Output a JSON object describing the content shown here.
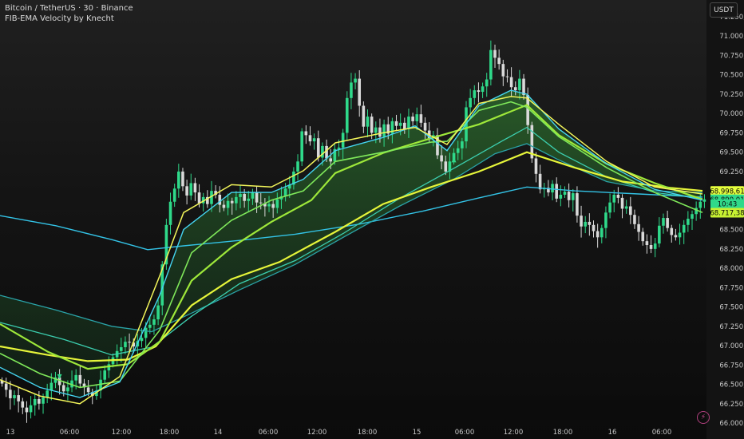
{
  "chart_data": {
    "type": "candlestick",
    "title": "Bitcoin / TetherUS · 30 · Binance",
    "indicator": "FIB-EMA Velocity by Knecht",
    "currency": "USDT",
    "ylim": [
      66000,
      71250
    ],
    "y_ticks": [
      {
        "value": 71250,
        "label": "71.250,00"
      },
      {
        "value": 71000,
        "label": "71.000,00"
      },
      {
        "value": 70750,
        "label": "70.750,00"
      },
      {
        "value": 70500,
        "label": "70.500,00"
      },
      {
        "value": 70250,
        "label": "70.250,00"
      },
      {
        "value": 70000,
        "label": "70.000,00"
      },
      {
        "value": 69750,
        "label": "69.750,00"
      },
      {
        "value": 69500,
        "label": "69.500,00"
      },
      {
        "value": 69250,
        "label": "69.250,00"
      },
      {
        "value": 69000,
        "label": "69.000,00"
      },
      {
        "value": 68750,
        "label": "68.750,00"
      },
      {
        "value": 68500,
        "label": "68.500,00"
      },
      {
        "value": 68250,
        "label": "68.250,00"
      },
      {
        "value": 68000,
        "label": "68.000,00"
      },
      {
        "value": 67750,
        "label": "67.750,00"
      },
      {
        "value": 67500,
        "label": "67.500,00"
      },
      {
        "value": 67250,
        "label": "67.250,00"
      },
      {
        "value": 67000,
        "label": "67.000,00"
      },
      {
        "value": 66750,
        "label": "66.750,00"
      },
      {
        "value": 66500,
        "label": "66.500,00"
      },
      {
        "value": 66250,
        "label": "66.250,00"
      },
      {
        "value": 66000,
        "label": "66.000,00"
      }
    ],
    "x_ticks": [
      "13",
      "06:00",
      "12:00",
      "18:00",
      "14",
      "06:00",
      "12:00",
      "18:00",
      "15",
      "06:00",
      "12:00",
      "18:00",
      "16",
      "06:00"
    ],
    "price_labels": [
      {
        "value": 68998.61,
        "label": "68.998,61",
        "color": "#e6ff3c"
      },
      {
        "value": 68890.01,
        "label": "68.890,01",
        "color": "#2fd98a"
      },
      {
        "value": 68830,
        "label": "10:43",
        "color": "#2fd98a"
      },
      {
        "value": 68717.38,
        "label": "68.717,38",
        "color": "#c6f032"
      }
    ],
    "series_colors": {
      "ema_cyan": "#33c3e6",
      "ema_yellow": "#e6f53a",
      "ema_lime": "#9ee83a",
      "ema_green": "#2fd98a",
      "ema_teal": "#2aa3a8",
      "up_candle": "#2fd98a",
      "down_candle": "#d9d9d9"
    },
    "candles_close": [
      66510,
      66430,
      66320,
      66360,
      66280,
      66200,
      66140,
      66230,
      66310,
      66250,
      66330,
      66420,
      66520,
      66590,
      66490,
      66410,
      66460,
      66550,
      66620,
      66510,
      66460,
      66400,
      66350,
      66420,
      66560,
      66680,
      66760,
      66850,
      66930,
      66980,
      67050,
      67040,
      66990,
      67060,
      67100,
      67230,
      67270,
      67340,
      67520,
      68050,
      68560,
      68860,
      69030,
      69250,
      69060,
      68940,
      69100,
      68980,
      68840,
      68920,
      68830,
      69000,
      68950,
      68820,
      68780,
      68870,
      68840,
      68920,
      68960,
      68870,
      68900,
      68980,
      68850,
      68840,
      68800,
      68830,
      68780,
      68890,
      68930,
      69030,
      69080,
      69250,
      69380,
      69770,
      69720,
      69640,
      69680,
      69430,
      69580,
      69420,
      69380,
      69540,
      69560,
      69750,
      70200,
      70400,
      70450,
      70100,
      69830,
      69960,
      69750,
      69820,
      69700,
      69860,
      69740,
      69900,
      69840,
      69880,
      69800,
      69960,
      69900,
      69990,
      69880,
      69780,
      69680,
      69720,
      69460,
      69380,
      69250,
      69380,
      69490,
      69550,
      69640,
      70080,
      70200,
      70300,
      70280,
      70350,
      70440,
      70820,
      70720,
      70640,
      70480,
      70470,
      70340,
      70300,
      70450,
      70240,
      69850,
      69420,
      69220,
      69020,
      69040,
      68980,
      69090,
      68900,
      68950,
      68990,
      68880,
      68970,
      68680,
      68540,
      68600,
      68560,
      68480,
      68400,
      68520,
      68720,
      68850,
      68950,
      68910,
      68770,
      68800,
      68690,
      68570,
      68470,
      68350,
      68300,
      68250,
      68320,
      68550,
      68650,
      68520,
      68430,
      68400,
      68460,
      68560,
      68640,
      68700,
      68780,
      68860,
      68890
    ],
    "ema_series": [
      {
        "key": "ema_cyan",
        "points": [
          [
            0,
            68680
          ],
          [
            70,
            68550
          ],
          [
            140,
            68370
          ],
          [
            185,
            68240
          ],
          [
            230,
            68290
          ],
          [
            300,
            68360
          ],
          [
            370,
            68440
          ],
          [
            450,
            68570
          ],
          [
            530,
            68740
          ],
          [
            600,
            68910
          ],
          [
            660,
            69050
          ],
          [
            720,
            69000
          ],
          [
            800,
            68960
          ],
          [
            880,
            68920
          ]
        ]
      },
      {
        "key": "ema_teal",
        "points": [
          [
            0,
            67650
          ],
          [
            70,
            67460
          ],
          [
            140,
            67250
          ],
          [
            190,
            67180
          ],
          [
            240,
            67420
          ],
          [
            300,
            67720
          ],
          [
            370,
            68050
          ],
          [
            430,
            68400
          ],
          [
            500,
            68800
          ],
          [
            570,
            69160
          ],
          [
            620,
            69480
          ],
          [
            660,
            69610
          ],
          [
            700,
            69400
          ],
          [
            760,
            69120
          ],
          [
            820,
            69000
          ],
          [
            880,
            68980
          ]
        ]
      },
      {
        "key": "ema_teal2",
        "points": [
          [
            0,
            67300
          ],
          [
            80,
            67080
          ],
          [
            140,
            66880
          ],
          [
            190,
            66980
          ],
          [
            240,
            67380
          ],
          [
            300,
            67800
          ],
          [
            370,
            68100
          ],
          [
            430,
            68450
          ],
          [
            500,
            68900
          ],
          [
            570,
            69300
          ],
          [
            630,
            69650
          ],
          [
            660,
            69820
          ],
          [
            700,
            69500
          ],
          [
            760,
            69180
          ],
          [
            820,
            68980
          ],
          [
            880,
            68900
          ]
        ]
      },
      {
        "key": "ema_yellow",
        "points": [
          [
            0,
            66990
          ],
          [
            60,
            66880
          ],
          [
            110,
            66800
          ],
          [
            160,
            66820
          ],
          [
            195,
            66990
          ],
          [
            240,
            67520
          ],
          [
            290,
            67860
          ],
          [
            350,
            68080
          ],
          [
            420,
            68470
          ],
          [
            480,
            68830
          ],
          [
            540,
            69050
          ],
          [
            600,
            69250
          ],
          [
            660,
            69500
          ],
          [
            720,
            69300
          ],
          [
            780,
            69120
          ],
          [
            840,
            69040
          ],
          [
            880,
            69000
          ]
        ]
      },
      {
        "key": "ema_lime_fill_top",
        "points": [
          [
            0,
            67280
          ],
          [
            60,
            66920
          ],
          [
            110,
            66700
          ],
          [
            160,
            66760
          ],
          [
            200,
            67050
          ],
          [
            240,
            67840
          ],
          [
            290,
            68270
          ],
          [
            340,
            68600
          ],
          [
            390,
            68880
          ],
          [
            420,
            69230
          ],
          [
            480,
            69490
          ],
          [
            540,
            69680
          ],
          [
            600,
            69860
          ],
          [
            660,
            70110
          ],
          [
            700,
            69720
          ],
          [
            760,
            69350
          ],
          [
            820,
            69100
          ],
          [
            880,
            68890
          ]
        ]
      },
      {
        "key": "ema_green",
        "points": [
          [
            0,
            66900
          ],
          [
            50,
            66640
          ],
          [
            100,
            66460
          ],
          [
            150,
            66540
          ],
          [
            200,
            67200
          ],
          [
            240,
            68200
          ],
          [
            290,
            68620
          ],
          [
            340,
            68880
          ],
          [
            380,
            69000
          ],
          [
            420,
            69380
          ],
          [
            480,
            69500
          ],
          [
            540,
            69630
          ],
          [
            560,
            69640
          ],
          [
            600,
            70040
          ],
          [
            640,
            70150
          ],
          [
            660,
            70080
          ],
          [
            700,
            69700
          ],
          [
            760,
            69300
          ],
          [
            820,
            68980
          ],
          [
            880,
            68720
          ]
        ]
      },
      {
        "key": "ema_cyan2",
        "points": [
          [
            0,
            66720
          ],
          [
            50,
            66460
          ],
          [
            100,
            66330
          ],
          [
            150,
            66530
          ],
          [
            200,
            67650
          ],
          [
            230,
            68500
          ],
          [
            290,
            68980
          ],
          [
            340,
            68980
          ],
          [
            380,
            69150
          ],
          [
            420,
            69520
          ],
          [
            480,
            69690
          ],
          [
            520,
            69840
          ],
          [
            560,
            69520
          ],
          [
            600,
            70100
          ],
          [
            640,
            70300
          ],
          [
            660,
            70250
          ],
          [
            700,
            69800
          ],
          [
            760,
            69350
          ],
          [
            820,
            69020
          ],
          [
            880,
            68880
          ]
        ]
      },
      {
        "key": "ema_yellow2",
        "points": [
          [
            0,
            66560
          ],
          [
            50,
            66350
          ],
          [
            100,
            66250
          ],
          [
            150,
            66600
          ],
          [
            200,
            67900
          ],
          [
            230,
            68720
          ],
          [
            290,
            69080
          ],
          [
            340,
            69050
          ],
          [
            380,
            69260
          ],
          [
            420,
            69620
          ],
          [
            480,
            69750
          ],
          [
            520,
            69820
          ],
          [
            560,
            69600
          ],
          [
            600,
            70130
          ],
          [
            640,
            70220
          ],
          [
            660,
            70200
          ],
          [
            700,
            69860
          ],
          [
            760,
            69380
          ],
          [
            820,
            69050
          ],
          [
            880,
            68960
          ]
        ]
      }
    ],
    "markers": [
      {
        "type": "triangle-down",
        "bar": 14,
        "value": 66600,
        "color": "#2fd98a"
      },
      {
        "type": "triangle-up",
        "bar": 110,
        "value": 69400,
        "color": "#2fd98a"
      }
    ]
  },
  "icons": {
    "logo": "tradingview-bolt-icon"
  }
}
